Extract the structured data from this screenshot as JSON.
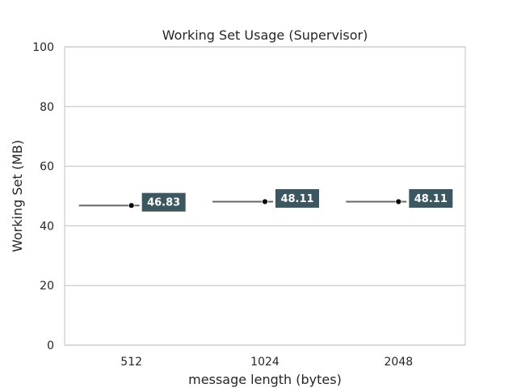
{
  "chart_data": {
    "type": "scatter",
    "title": "Working Set Usage (Supervisor)",
    "xlabel": "message length (bytes)",
    "ylabel": "Working Set (MB)",
    "categories": [
      "512",
      "1024",
      "2048"
    ],
    "values": [
      46.83,
      48.11,
      48.11
    ],
    "data_labels": [
      "46.83",
      "48.11",
      "48.11"
    ],
    "ylim": [
      0,
      100
    ],
    "yticks": [
      0,
      20,
      40,
      60,
      80,
      100
    ],
    "ytick_labels": [
      "0",
      "20",
      "40",
      "60",
      "80",
      "100"
    ],
    "grid": true,
    "grid_axis": "y",
    "legend": "none"
  },
  "colors": {
    "grid": "#cccccc",
    "axes": "#cccccc",
    "marker": "#000000",
    "range_line": "#666666",
    "label_box": "#3d5761",
    "label_text": "#ffffff",
    "text": "#262626"
  }
}
